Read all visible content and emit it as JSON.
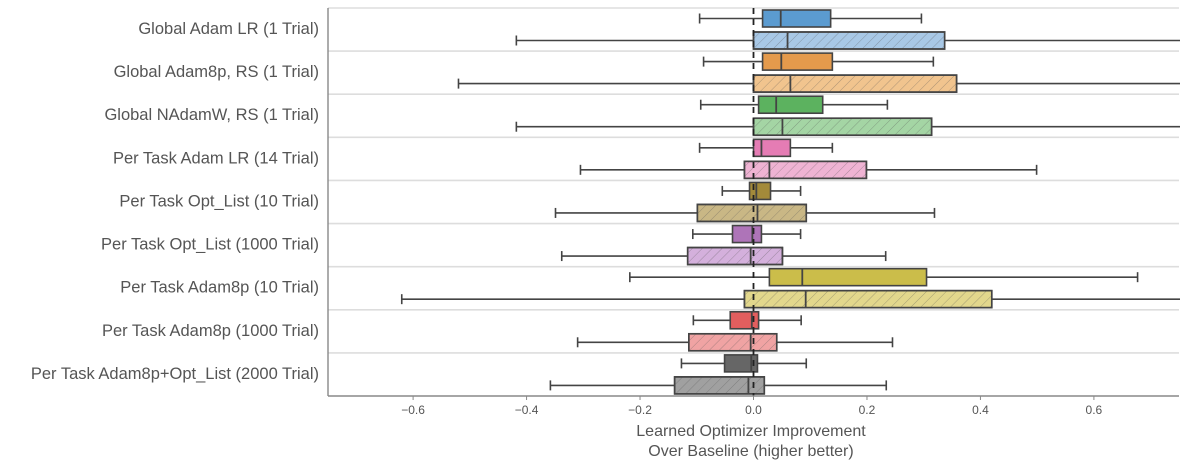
{
  "chart_data": {
    "type": "boxplot",
    "orientation": "horizontal",
    "title": "",
    "xlabel_lines": [
      "Learned Optimizer Improvement",
      "Over Baseline (higher better)"
    ],
    "ylabel": "",
    "xlim": [
      -0.75,
      0.75
    ],
    "xticks": [
      -0.6,
      -0.4,
      -0.2,
      0.0,
      0.2,
      0.4,
      0.6
    ],
    "xtick_labels": [
      "−0.6",
      "−0.4",
      "−0.2",
      "0.0",
      "0.2",
      "0.4",
      "0.6"
    ],
    "reference_line": {
      "x": 0.0,
      "style": "dashed"
    },
    "grid": "horizontal separators between categories",
    "series_styles": [
      {
        "name": "solid",
        "hatch": false
      },
      {
        "name": "hatched",
        "hatch": true
      }
    ],
    "categories": [
      {
        "label": "Global Adam LR (1 Trial)",
        "color": "#5b9bd0",
        "light_color": "#a8c8e6",
        "boxes": [
          {
            "series": "solid",
            "whisker_low": -0.095,
            "q1": 0.016,
            "median": 0.048,
            "q3": 0.136,
            "whisker_high": 0.296
          },
          {
            "series": "hatched",
            "whisker_low": -0.418,
            "q1": 0.0,
            "median": 0.06,
            "q3": 0.337,
            "whisker_high": 0.8
          }
        ]
      },
      {
        "label": "Global Adam8p, RS (1 Trial)",
        "color": "#e49a4c",
        "light_color": "#f1c48e",
        "boxes": [
          {
            "series": "solid",
            "whisker_low": -0.088,
            "q1": 0.016,
            "median": 0.049,
            "q3": 0.139,
            "whisker_high": 0.317
          },
          {
            "series": "hatched",
            "whisker_low": -0.52,
            "q1": 0.0,
            "median": 0.065,
            "q3": 0.358,
            "whisker_high": 0.8
          }
        ]
      },
      {
        "label": "Global NAdamW, RS (1 Trial)",
        "color": "#5cb25f",
        "light_color": "#a4d5a4",
        "boxes": [
          {
            "series": "solid",
            "whisker_low": -0.093,
            "q1": 0.009,
            "median": 0.04,
            "q3": 0.122,
            "whisker_high": 0.236
          },
          {
            "series": "hatched",
            "whisker_low": -0.418,
            "q1": 0.0,
            "median": 0.051,
            "q3": 0.314,
            "whisker_high": 0.8
          }
        ]
      },
      {
        "label": "Per Task Adam LR (14 Trial)",
        "color": "#e57cb4",
        "light_color": "#efb3d3",
        "boxes": [
          {
            "series": "solid",
            "whisker_low": -0.095,
            "q1": 0.0,
            "median": 0.014,
            "q3": 0.065,
            "whisker_high": 0.139
          },
          {
            "series": "hatched",
            "whisker_low": -0.305,
            "q1": -0.016,
            "median": 0.028,
            "q3": 0.199,
            "whisker_high": 0.499
          }
        ]
      },
      {
        "label": "Per Task Opt_List (10 Trial)",
        "color": "#a38a3a",
        "light_color": "#c9b785",
        "boxes": [
          {
            "series": "solid",
            "whisker_low": -0.055,
            "q1": -0.007,
            "median": 0.005,
            "q3": 0.03,
            "whisker_high": 0.083
          },
          {
            "series": "hatched",
            "whisker_low": -0.349,
            "q1": -0.099,
            "median": 0.007,
            "q3": 0.093,
            "whisker_high": 0.319
          }
        ]
      },
      {
        "label": "Per Task Opt_List (1000 Trial)",
        "color": "#ae74b8",
        "light_color": "#d4b0dc",
        "boxes": [
          {
            "series": "solid",
            "whisker_low": -0.107,
            "q1": -0.037,
            "median": -0.002,
            "q3": 0.014,
            "whisker_high": 0.083
          },
          {
            "series": "hatched",
            "whisker_low": -0.338,
            "q1": -0.116,
            "median": -0.005,
            "q3": 0.051,
            "whisker_high": 0.233
          }
        ]
      },
      {
        "label": "Per Task Adam8p (10 Trial)",
        "color": "#cbbd4a",
        "light_color": "#e2d78c",
        "boxes": [
          {
            "series": "solid",
            "whisker_low": -0.218,
            "q1": 0.028,
            "median": 0.086,
            "q3": 0.305,
            "whisker_high": 0.677
          },
          {
            "series": "hatched",
            "whisker_low": -0.62,
            "q1": -0.016,
            "median": 0.092,
            "q3": 0.42,
            "whisker_high": 0.8
          }
        ]
      },
      {
        "label": "Per Task Adam8p (1000 Trial)",
        "color": "#e25e5e",
        "light_color": "#f0a3a3",
        "boxes": [
          {
            "series": "solid",
            "whisker_low": -0.106,
            "q1": -0.041,
            "median": -0.003,
            "q3": 0.009,
            "whisker_high": 0.084
          },
          {
            "series": "hatched",
            "whisker_low": -0.31,
            "q1": -0.114,
            "median": -0.005,
            "q3": 0.041,
            "whisker_high": 0.245
          }
        ]
      },
      {
        "label": "Per Task Adam8p+Opt_List (2000 Trial)",
        "color": "#666666",
        "light_color": "#a0a0a0",
        "boxes": [
          {
            "series": "solid",
            "whisker_low": -0.127,
            "q1": -0.051,
            "median": -0.004,
            "q3": 0.007,
            "whisker_high": 0.093
          },
          {
            "series": "hatched",
            "whisker_low": -0.358,
            "q1": -0.139,
            "median": -0.009,
            "q3": 0.019,
            "whisker_high": 0.234
          }
        ]
      }
    ]
  }
}
